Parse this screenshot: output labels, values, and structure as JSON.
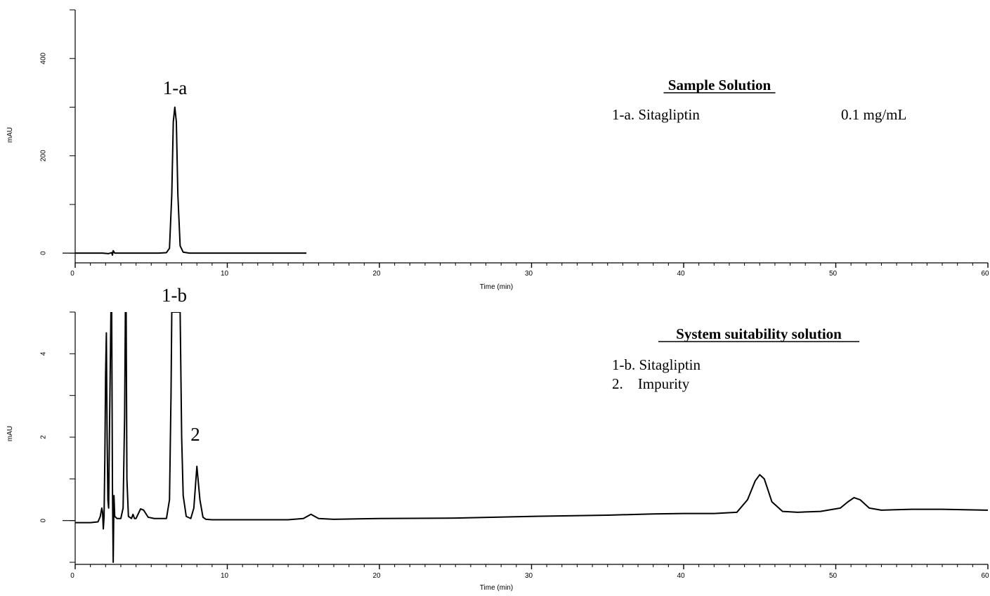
{
  "chart_data": [
    {
      "type": "line",
      "ylabel": "mAU",
      "xlabel": "Time (min)",
      "xlim": [
        0,
        60
      ],
      "ylim": [
        -20,
        500
      ],
      "x_ticks": [
        "0",
        "10",
        "20",
        "30",
        "40",
        "50",
        "60"
      ],
      "y_ticks": [
        "0",
        "200",
        "400"
      ],
      "legend_title": "Sample Solution",
      "legend_entries": [
        {
          "name": "1-a. Sitagliptin",
          "value": "0.1 mg/mL"
        }
      ],
      "peak_labels": [
        {
          "text": "1-a",
          "x": 6.55,
          "y": 300
        }
      ],
      "series": [
        {
          "x": [
            0,
            1.8,
            2.2,
            2.4,
            2.45,
            2.5,
            2.6,
            3.0,
            5.5,
            6.0,
            6.2,
            6.35,
            6.45,
            6.55,
            6.65,
            6.75,
            6.9,
            7.1,
            7.5,
            9.0,
            12.0,
            15.2
          ],
          "y": [
            0,
            0,
            -1,
            1,
            -4,
            5,
            0,
            0,
            0,
            1,
            10,
            120,
            270,
            300,
            270,
            120,
            15,
            2,
            0,
            0,
            0,
            0
          ]
        }
      ]
    },
    {
      "type": "line",
      "ylabel": "mAU",
      "xlabel": "Time (min)",
      "xlim": [
        0,
        60
      ],
      "ylim": [
        -1.05,
        5
      ],
      "x_ticks": [
        "0",
        "10",
        "20",
        "30",
        "40",
        "50",
        "60"
      ],
      "y_ticks": [
        "0",
        "2",
        "4"
      ],
      "legend_title": "System suitability solution",
      "legend_entries": [
        {
          "name": "1-b. Sitagliptin"
        },
        {
          "name": "2.    Impurity"
        }
      ],
      "peak_labels": [
        {
          "text": "1-b",
          "x": 6.55,
          "y": 5
        },
        {
          "text": "2",
          "x": 7.9,
          "y": 1.3
        }
      ],
      "series": [
        {
          "x": [
            0,
            1.0,
            1.5,
            1.65,
            1.75,
            1.8,
            1.85,
            1.9,
            1.95,
            2.0,
            2.05,
            2.1,
            2.15,
            2.2,
            2.25,
            2.35,
            2.4,
            2.45,
            2.5,
            2.55,
            2.6,
            2.75,
            3.0,
            3.15,
            3.25,
            3.3,
            3.35,
            3.4,
            3.5,
            3.7,
            3.8,
            3.9,
            4.0,
            4.3,
            4.5,
            4.8,
            5.2,
            6.0,
            6.2,
            6.3,
            6.35,
            6.5,
            6.8,
            6.9,
            7.0,
            7.1,
            7.3,
            7.6,
            7.8,
            8.0,
            8.2,
            8.4,
            8.6,
            9.0,
            10.0,
            12.0,
            14.0,
            15.0,
            15.5,
            16.0,
            17.0,
            20.0,
            25.0,
            30.0,
            35.0,
            38.0,
            40.0,
            42.0,
            43.5,
            44.2,
            44.7,
            45.0,
            45.3,
            45.8,
            46.5,
            47.5,
            49.0,
            50.3,
            50.8,
            51.2,
            51.6,
            52.2,
            53.0,
            55.0,
            57.0,
            60.0
          ],
          "y": [
            -0.05,
            -0.05,
            -0.03,
            0.1,
            0.3,
            0.2,
            -0.2,
            0.1,
            1.5,
            3.5,
            4.5,
            2.0,
            0.5,
            0.3,
            2.0,
            5,
            5,
            0.8,
            -1.0,
            0.6,
            0.1,
            0.05,
            0.05,
            0.3,
            2.5,
            5,
            5,
            1.0,
            0.1,
            0.05,
            0.15,
            0.05,
            0.05,
            0.28,
            0.25,
            0.08,
            0.05,
            0.05,
            0.5,
            3.0,
            5,
            5,
            5,
            5,
            2.0,
            0.6,
            0.1,
            0.05,
            0.3,
            1.3,
            0.5,
            0.08,
            0.03,
            0.02,
            0.02,
            0.02,
            0.02,
            0.05,
            0.15,
            0.05,
            0.03,
            0.05,
            0.06,
            0.1,
            0.13,
            0.16,
            0.17,
            0.17,
            0.2,
            0.5,
            0.95,
            1.1,
            1.0,
            0.45,
            0.22,
            0.2,
            0.22,
            0.3,
            0.45,
            0.55,
            0.5,
            0.3,
            0.25,
            0.27,
            0.27,
            0.25
          ]
        }
      ]
    }
  ]
}
